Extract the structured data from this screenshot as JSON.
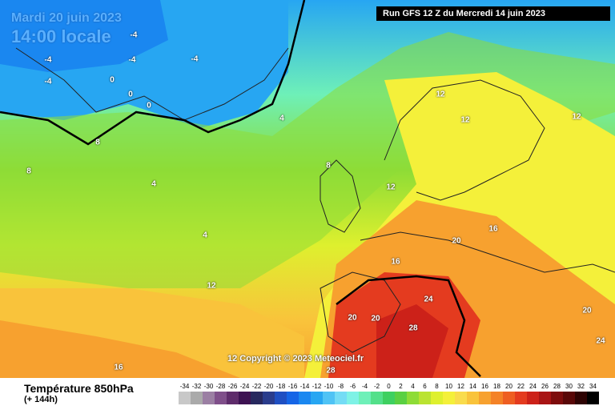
{
  "map": {
    "date_label": "Mardi 20 juin 2023",
    "time_label": "14:00 locale",
    "run_label": "Run GFS 12 Z du Mercredi 14 juin 2023",
    "copyright": "12 Copyright © 2023 Meteociel.fr"
  },
  "legend": {
    "title": "Température 850hPa",
    "subtitle": "(+ 144h)",
    "scale_values": [
      "-34",
      "-32",
      "-30",
      "-28",
      "-26",
      "-24",
      "-22",
      "-20",
      "-18",
      "-16",
      "-14",
      "-12",
      "-10",
      "-8",
      "-6",
      "-4",
      "-2",
      "0",
      "2",
      "4",
      "6",
      "8",
      "10",
      "12",
      "14",
      "16",
      "18",
      "20",
      "22",
      "24",
      "26",
      "28",
      "30",
      "32",
      "34"
    ],
    "colors": [
      "#c8c8c8",
      "#aaaaaa",
      "#9b7fa3",
      "#7f4f8a",
      "#5e2c6b",
      "#3d1252",
      "#27285e",
      "#2a3c8c",
      "#1f4fc2",
      "#1565e6",
      "#1a87f0",
      "#27a6f2",
      "#4fc3f5",
      "#74dcf5",
      "#7ef2e6",
      "#6ef0b8",
      "#53e08a",
      "#3ed060",
      "#5ad042",
      "#8edc36",
      "#bae331",
      "#def02e",
      "#f4f03a",
      "#f9dc4c",
      "#f9c33b",
      "#f7a12f",
      "#f48227",
      "#ee5e22",
      "#e43b1f",
      "#cc2119",
      "#a81414",
      "#7d0c0c",
      "#590707",
      "#2e0303",
      "#000000"
    ]
  },
  "labels": [
    {
      "text": "-4"
    },
    {
      "text": "-4"
    },
    {
      "text": "-4"
    },
    {
      "text": "-4"
    },
    {
      "text": "-4"
    },
    {
      "text": "0"
    },
    {
      "text": "0"
    },
    {
      "text": "0"
    },
    {
      "text": "4"
    },
    {
      "text": "8"
    },
    {
      "text": "8"
    },
    {
      "text": "4"
    },
    {
      "text": "4"
    },
    {
      "text": "8"
    },
    {
      "text": "12"
    },
    {
      "text": "12"
    },
    {
      "text": "12"
    },
    {
      "text": "12"
    },
    {
      "text": "16"
    },
    {
      "text": "16"
    },
    {
      "text": "20"
    },
    {
      "text": "20"
    },
    {
      "text": "20"
    },
    {
      "text": "24"
    },
    {
      "text": "28"
    },
    {
      "text": "28"
    },
    {
      "text": "20"
    },
    {
      "text": "16"
    },
    {
      "text": "12"
    },
    {
      "text": "24"
    }
  ]
}
